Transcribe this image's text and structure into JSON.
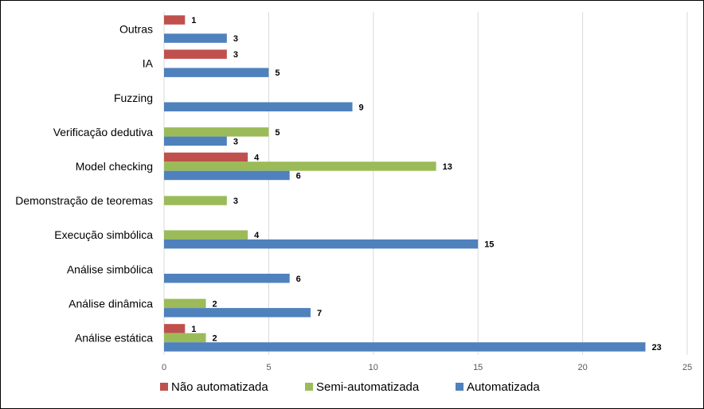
{
  "chart_data": {
    "type": "bar",
    "orientation": "horizontal",
    "categories": [
      "Outras",
      "IA",
      "Fuzzing",
      "Verificação dedutiva",
      "Model checking",
      "Demonstração de teoremas",
      "Execução simbólica",
      "Análise simbólica",
      "Análise dinâmica",
      "Análise estática"
    ],
    "series": [
      {
        "name": "Não automatizada",
        "color": "#c0504d",
        "values": [
          1,
          3,
          null,
          null,
          4,
          null,
          null,
          null,
          null,
          1
        ]
      },
      {
        "name": "Semi-automatizada",
        "color": "#9bbb59",
        "values": [
          null,
          null,
          null,
          5,
          13,
          3,
          4,
          null,
          2,
          2
        ]
      },
      {
        "name": "Automatizada",
        "color": "#4f81bd",
        "values": [
          3,
          5,
          9,
          3,
          6,
          null,
          15,
          6,
          7,
          23
        ]
      }
    ],
    "xlim": [
      0,
      25
    ],
    "xticks": [
      0,
      5,
      10,
      15,
      20,
      25
    ],
    "grid": true,
    "legend_position": "bottom",
    "title": "",
    "xlabel": "",
    "ylabel": ""
  }
}
